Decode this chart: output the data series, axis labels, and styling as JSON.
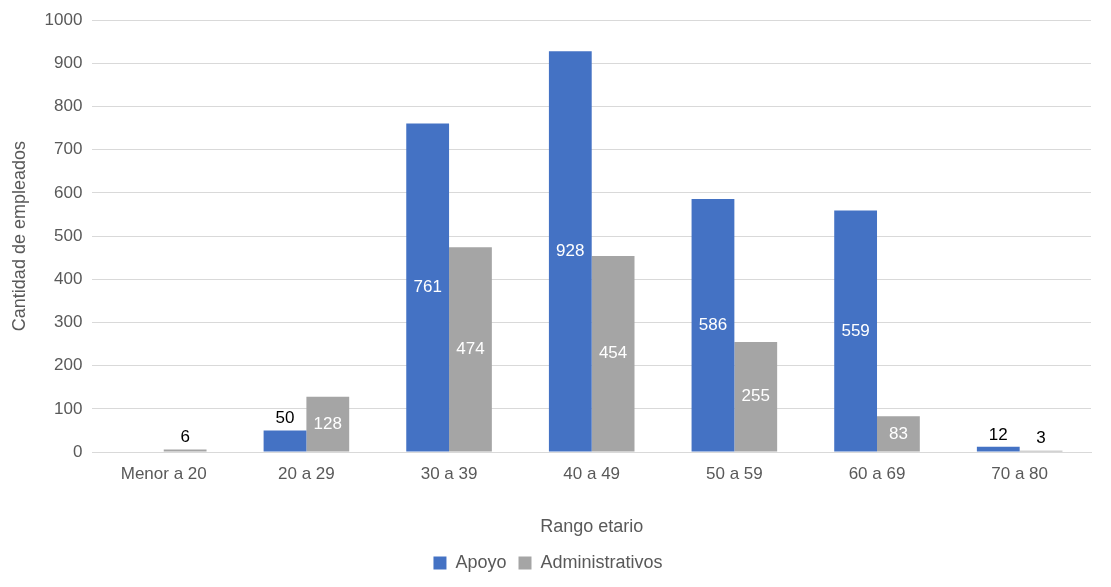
{
  "chart_data": {
    "type": "bar",
    "xlabel": "Rango etario",
    "ylabel": "Cantidad de empleados",
    "categories": [
      "Menor a 20",
      "20 a 29",
      "30 a 39",
      "40 a 49",
      "50 a 59",
      "60 a 69",
      "70 a 80"
    ],
    "series": [
      {
        "name": "Apoyo",
        "color": "#4472c4",
        "values": [
          null,
          50,
          761,
          928,
          586,
          559,
          12
        ]
      },
      {
        "name": "Administrativos",
        "color": "#a5a5a5",
        "values": [
          6,
          128,
          474,
          454,
          255,
          83,
          3
        ]
      }
    ],
    "ylim": [
      0,
      1000
    ],
    "yticks": [
      0,
      100,
      200,
      300,
      400,
      500,
      600,
      700,
      800,
      900,
      1000
    ],
    "grid": "y",
    "legend": "bottom",
    "data_labels": true
  }
}
